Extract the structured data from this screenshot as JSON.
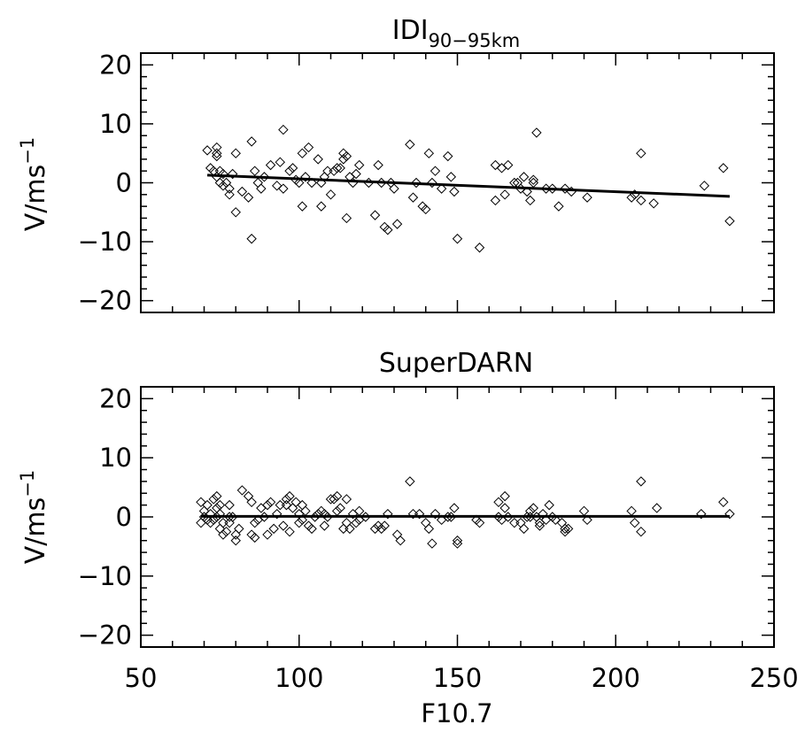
{
  "chart_data": [
    {
      "type": "scatter",
      "title": "IDI",
      "title_subscript": "90−95km",
      "ylabel": "V/ms",
      "ylabel_superscript": "−1",
      "xlabel": "",
      "xlim": [
        50,
        250
      ],
      "ylim": [
        -22,
        22
      ],
      "yticks": [
        -20,
        -10,
        0,
        10,
        20
      ],
      "ytick_labels": [
        "−20",
        "−10",
        "0",
        "10",
        "20"
      ],
      "grid": false,
      "marker": "diamond",
      "points": [
        [
          71,
          5.5
        ],
        [
          72,
          2.5
        ],
        [
          73,
          2
        ],
        [
          74,
          5
        ],
        [
          74,
          6
        ],
        [
          74,
          4.5
        ],
        [
          74,
          1
        ],
        [
          75,
          0
        ],
        [
          75,
          2
        ],
        [
          76,
          -0.5
        ],
        [
          76,
          1.5
        ],
        [
          77,
          0
        ],
        [
          78,
          -1
        ],
        [
          78,
          -2
        ],
        [
          79,
          1.5
        ],
        [
          80,
          5
        ],
        [
          80,
          -5
        ],
        [
          82,
          -1.5
        ],
        [
          84,
          -2.5
        ],
        [
          85,
          -9.5
        ],
        [
          85,
          7
        ],
        [
          86,
          2
        ],
        [
          87,
          0
        ],
        [
          88,
          -1
        ],
        [
          89,
          1
        ],
        [
          91,
          3
        ],
        [
          93,
          -0.5
        ],
        [
          94,
          3.5
        ],
        [
          95,
          9
        ],
        [
          95,
          -1
        ],
        [
          97,
          2
        ],
        [
          98,
          2.5
        ],
        [
          99,
          0.5
        ],
        [
          100,
          0
        ],
        [
          101,
          5
        ],
        [
          101,
          -4
        ],
        [
          102,
          1
        ],
        [
          103,
          6
        ],
        [
          104,
          0
        ],
        [
          106,
          4
        ],
        [
          107,
          -4
        ],
        [
          107,
          0
        ],
        [
          108,
          1
        ],
        [
          109,
          2
        ],
        [
          110,
          -2
        ],
        [
          111,
          2
        ],
        [
          112,
          2.5
        ],
        [
          113,
          2.5
        ],
        [
          114,
          4
        ],
        [
          114,
          5
        ],
        [
          115,
          4.5
        ],
        [
          115,
          -6
        ],
        [
          116,
          1
        ],
        [
          117,
          0
        ],
        [
          118,
          1.5
        ],
        [
          119,
          3
        ],
        [
          122,
          0
        ],
        [
          124,
          -5.5
        ],
        [
          125,
          3
        ],
        [
          126,
          0
        ],
        [
          127,
          -7.5
        ],
        [
          128,
          -8
        ],
        [
          129,
          0
        ],
        [
          130,
          -1
        ],
        [
          131,
          -7
        ],
        [
          135,
          6.5
        ],
        [
          136,
          -2.5
        ],
        [
          137,
          0
        ],
        [
          139,
          -4
        ],
        [
          140,
          -4.5
        ],
        [
          141,
          5
        ],
        [
          142,
          0
        ],
        [
          143,
          2
        ],
        [
          145,
          -1
        ],
        [
          147,
          4.5
        ],
        [
          148,
          1
        ],
        [
          149,
          -1.5
        ],
        [
          150,
          -9.5
        ],
        [
          157,
          -11
        ],
        [
          162,
          3
        ],
        [
          162,
          -3
        ],
        [
          164,
          2.5
        ],
        [
          165,
          -2
        ],
        [
          166,
          3
        ],
        [
          168,
          0
        ],
        [
          169,
          0
        ],
        [
          170,
          -1
        ],
        [
          171,
          1
        ],
        [
          172,
          -1.5
        ],
        [
          173,
          -3
        ],
        [
          174,
          0
        ],
        [
          174,
          0.5
        ],
        [
          175,
          8.5
        ],
        [
          178,
          -1
        ],
        [
          180,
          -1
        ],
        [
          182,
          -4
        ],
        [
          184,
          -1
        ],
        [
          186,
          -1.5
        ],
        [
          191,
          -2.5
        ],
        [
          205,
          -2.5
        ],
        [
          206,
          -2
        ],
        [
          208,
          5
        ],
        [
          208,
          -3
        ],
        [
          212,
          -3.5
        ],
        [
          228,
          -0.5
        ],
        [
          234,
          2.5
        ],
        [
          236,
          -6.5
        ]
      ],
      "fit_line": [
        [
          71,
          1.3
        ],
        [
          236,
          -2.3
        ]
      ]
    },
    {
      "type": "scatter",
      "title": "SuperDARN",
      "title_subscript": "",
      "ylabel": "V/ms",
      "ylabel_superscript": "−1",
      "xlabel": "F10.7",
      "xlim": [
        50,
        250
      ],
      "ylim": [
        -22,
        22
      ],
      "xticks": [
        50,
        100,
        150,
        200,
        250
      ],
      "xtick_labels": [
        "50",
        "100",
        "150",
        "200",
        "250"
      ],
      "yticks": [
        -20,
        -10,
        0,
        10,
        20
      ],
      "ytick_labels": [
        "−20",
        "−10",
        "0",
        "10",
        "20"
      ],
      "grid": false,
      "marker": "diamond",
      "points": [
        [
          69,
          2.5
        ],
        [
          69,
          -1
        ],
        [
          70,
          0
        ],
        [
          70,
          1
        ],
        [
          71,
          -0.5
        ],
        [
          71,
          2
        ],
        [
          72,
          0.5
        ],
        [
          72,
          -1
        ],
        [
          73,
          3
        ],
        [
          73,
          -0.5
        ],
        [
          74,
          1.5
        ],
        [
          74,
          3.5
        ],
        [
          74,
          0
        ],
        [
          75,
          -2
        ],
        [
          75,
          2
        ],
        [
          75,
          0.5
        ],
        [
          76,
          -1
        ],
        [
          76,
          -3
        ],
        [
          77,
          -2.5
        ],
        [
          78,
          -1
        ],
        [
          78,
          2
        ],
        [
          78,
          0
        ],
        [
          79,
          0
        ],
        [
          80,
          -3
        ],
        [
          80,
          -4
        ],
        [
          81,
          -2
        ],
        [
          82,
          4.5
        ],
        [
          84,
          3.5
        ],
        [
          85,
          2.5
        ],
        [
          85,
          -3
        ],
        [
          86,
          -1
        ],
        [
          86,
          -3.5
        ],
        [
          87,
          -0.5
        ],
        [
          88,
          1.5
        ],
        [
          89,
          0
        ],
        [
          90,
          -3
        ],
        [
          90,
          2
        ],
        [
          91,
          2.5
        ],
        [
          92,
          -2
        ],
        [
          93,
          0.5
        ],
        [
          94,
          2
        ],
        [
          95,
          -1.5
        ],
        [
          96,
          3
        ],
        [
          96,
          2
        ],
        [
          97,
          -2.5
        ],
        [
          97,
          3.5
        ],
        [
          98,
          1.5
        ],
        [
          99,
          2.5
        ],
        [
          100,
          0.5
        ],
        [
          100,
          -1
        ],
        [
          101,
          2
        ],
        [
          101,
          -0.5
        ],
        [
          102,
          1
        ],
        [
          103,
          -1.5
        ],
        [
          104,
          -2
        ],
        [
          105,
          0
        ],
        [
          106,
          0.5
        ],
        [
          107,
          1
        ],
        [
          108,
          -1.5
        ],
        [
          108,
          0.5
        ],
        [
          109,
          0
        ],
        [
          110,
          3
        ],
        [
          111,
          3
        ],
        [
          112,
          1
        ],
        [
          112,
          3.5
        ],
        [
          113,
          1.5
        ],
        [
          114,
          -2
        ],
        [
          115,
          3
        ],
        [
          115,
          -1
        ],
        [
          116,
          -2
        ],
        [
          117,
          0.5
        ],
        [
          118,
          -1
        ],
        [
          119,
          -0.5
        ],
        [
          119,
          1
        ],
        [
          121,
          0
        ],
        [
          124,
          -2
        ],
        [
          125,
          -1.5
        ],
        [
          126,
          -2
        ],
        [
          127,
          -1.5
        ],
        [
          128,
          0.5
        ],
        [
          131,
          -3
        ],
        [
          132,
          -4
        ],
        [
          135,
          6
        ],
        [
          136,
          0.5
        ],
        [
          138,
          0.5
        ],
        [
          140,
          -1
        ],
        [
          141,
          -2
        ],
        [
          142,
          -4.5
        ],
        [
          143,
          0.5
        ],
        [
          145,
          -0.5
        ],
        [
          147,
          0
        ],
        [
          148,
          0
        ],
        [
          149,
          1.5
        ],
        [
          150,
          -4
        ],
        [
          150,
          -4.5
        ],
        [
          156,
          -0.5
        ],
        [
          157,
          -1
        ],
        [
          163,
          0
        ],
        [
          163,
          2.5
        ],
        [
          164,
          -0.5
        ],
        [
          165,
          3.5
        ],
        [
          165,
          1.5
        ],
        [
          166,
          0
        ],
        [
          168,
          -1
        ],
        [
          170,
          -1
        ],
        [
          171,
          -2
        ],
        [
          172,
          0
        ],
        [
          173,
          0
        ],
        [
          173,
          1
        ],
        [
          174,
          1.5
        ],
        [
          175,
          0
        ],
        [
          176,
          -1
        ],
        [
          176,
          -1.5
        ],
        [
          177,
          0.5
        ],
        [
          178,
          -0.5
        ],
        [
          179,
          2
        ],
        [
          180,
          0
        ],
        [
          181,
          -0.5
        ],
        [
          183,
          -1
        ],
        [
          184,
          -2
        ],
        [
          184,
          -2.5
        ],
        [
          185,
          -2
        ],
        [
          190,
          1
        ],
        [
          191,
          -0.5
        ],
        [
          205,
          1
        ],
        [
          206,
          -1
        ],
        [
          208,
          6
        ],
        [
          208,
          -2.5
        ],
        [
          213,
          1.5
        ],
        [
          227,
          0.5
        ],
        [
          234,
          2.5
        ],
        [
          236,
          0.5
        ]
      ],
      "fit_line": [
        [
          69,
          0.1
        ],
        [
          236,
          0.1
        ]
      ]
    }
  ]
}
